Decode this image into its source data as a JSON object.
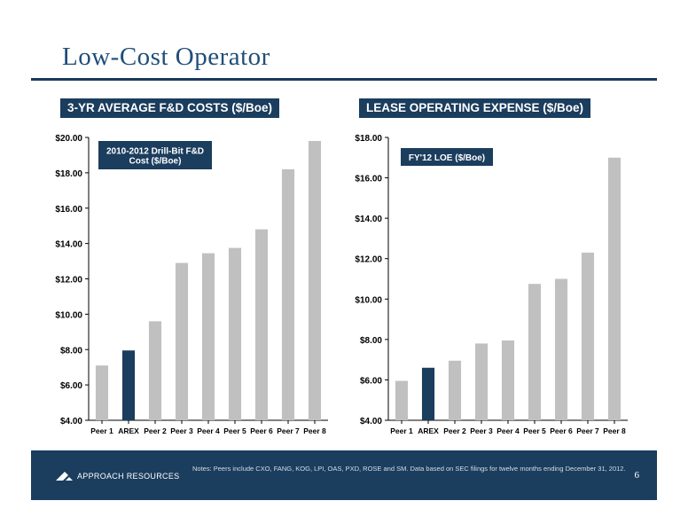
{
  "page": {
    "title": "Low-Cost Operator",
    "notes": "Notes: Peers include CXO, FANG, KOG, LPI, OAS, PXD, ROSE and SM.  Data based on SEC filings for twelve months ending December 31, 2012.",
    "brand": "APPROACH RESOURCES",
    "page_number": "6"
  },
  "colors": {
    "bar": "#c0c0c0",
    "highlight": "#1b3d5e",
    "header": "#1b3d5e"
  },
  "chart_data": [
    {
      "type": "bar",
      "header": "3-YR AVERAGE F&D COSTS ($/Boe)",
      "legend_label": "2010-2012 Drill-Bit F&D Cost ($/Boe)",
      "categories": [
        "Peer 1",
        "AREX",
        "Peer 2",
        "Peer 3",
        "Peer 4",
        "Peer 5",
        "Peer 6",
        "Peer 7",
        "Peer 8"
      ],
      "values": [
        7.1,
        7.95,
        9.6,
        12.9,
        13.45,
        13.75,
        14.8,
        18.2,
        19.8
      ],
      "highlight_index": 1,
      "ylim": [
        4,
        20
      ],
      "yticks": [
        4,
        6,
        8,
        10,
        12,
        14,
        16,
        18,
        20
      ],
      "ytick_labels": [
        "$4.00",
        "$6.00",
        "$8.00",
        "$10.00",
        "$12.00",
        "$14.00",
        "$16.00",
        "$18.00",
        "$20.00"
      ]
    },
    {
      "type": "bar",
      "header": "LEASE OPERATING EXPENSE ($/Boe)",
      "legend_label": "FY'12 LOE ($/Boe)",
      "categories": [
        "Peer 1",
        "AREX",
        "Peer 2",
        "Peer 3",
        "Peer 4",
        "Peer 5",
        "Peer 6",
        "Peer 7",
        "Peer 8"
      ],
      "values": [
        5.95,
        6.6,
        6.95,
        7.8,
        7.95,
        10.75,
        11.0,
        12.3,
        17.0
      ],
      "highlight_index": 1,
      "ylim": [
        4,
        18
      ],
      "yticks": [
        4,
        6,
        8,
        10,
        12,
        14,
        16,
        18
      ],
      "ytick_labels": [
        "$4.00",
        "$6.00",
        "$8.00",
        "$10.00",
        "$12.00",
        "$14.00",
        "$16.00",
        "$18.00"
      ]
    }
  ]
}
